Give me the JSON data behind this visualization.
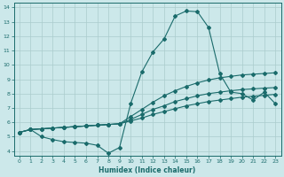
{
  "xlabel": "Humidex (Indice chaleur)",
  "bg_color": "#cce8ea",
  "grid_color": "#aacccc",
  "line_color": "#1a6b6b",
  "xlim": [
    -0.5,
    23.5
  ],
  "ylim": [
    3.7,
    14.3
  ],
  "xticks": [
    0,
    1,
    2,
    3,
    4,
    5,
    6,
    7,
    8,
    9,
    10,
    11,
    12,
    13,
    14,
    15,
    16,
    17,
    18,
    19,
    20,
    21,
    22,
    23
  ],
  "yticks": [
    4,
    5,
    6,
    7,
    8,
    9,
    10,
    11,
    12,
    13,
    14
  ],
  "line1_x": [
    0,
    1,
    2,
    3,
    4,
    5,
    6,
    7,
    8,
    9,
    10,
    11,
    12,
    13,
    14,
    15,
    16,
    17,
    18,
    19,
    20,
    21,
    22,
    23
  ],
  "line1_y": [
    5.3,
    5.5,
    5.55,
    5.6,
    5.65,
    5.7,
    5.75,
    5.8,
    5.85,
    5.9,
    6.1,
    6.3,
    6.55,
    6.75,
    6.95,
    7.15,
    7.3,
    7.45,
    7.55,
    7.65,
    7.75,
    7.82,
    7.88,
    7.95
  ],
  "line2_x": [
    0,
    1,
    2,
    3,
    4,
    5,
    6,
    7,
    8,
    9,
    10,
    11,
    12,
    13,
    14,
    15,
    16,
    17,
    18,
    19,
    20,
    21,
    22,
    23
  ],
  "line2_y": [
    5.3,
    5.5,
    5.0,
    4.8,
    4.65,
    4.6,
    4.55,
    4.4,
    3.85,
    4.25,
    7.3,
    9.5,
    10.9,
    11.8,
    13.4,
    13.75,
    13.7,
    12.6,
    9.4,
    8.1,
    8.0,
    7.55,
    8.1,
    7.3
  ],
  "line3_x": [
    0,
    1,
    2,
    3,
    4,
    5,
    6,
    7,
    8,
    9,
    10,
    11,
    12,
    13,
    14,
    15,
    16,
    17,
    18,
    19,
    20,
    21,
    22,
    23
  ],
  "line3_y": [
    5.3,
    5.5,
    5.55,
    5.6,
    5.65,
    5.7,
    5.75,
    5.8,
    5.85,
    5.9,
    6.2,
    6.55,
    6.9,
    7.15,
    7.45,
    7.65,
    7.85,
    8.0,
    8.1,
    8.2,
    8.28,
    8.33,
    8.38,
    8.42
  ],
  "line4_x": [
    0,
    1,
    2,
    3,
    4,
    5,
    6,
    7,
    8,
    9,
    10,
    11,
    12,
    13,
    14,
    15,
    16,
    17,
    18,
    19,
    20,
    21,
    22,
    23
  ],
  "line4_y": [
    5.3,
    5.5,
    5.55,
    5.6,
    5.65,
    5.7,
    5.75,
    5.8,
    5.85,
    5.9,
    6.4,
    6.9,
    7.4,
    7.85,
    8.2,
    8.5,
    8.75,
    8.95,
    9.1,
    9.2,
    9.3,
    9.35,
    9.4,
    9.45
  ]
}
